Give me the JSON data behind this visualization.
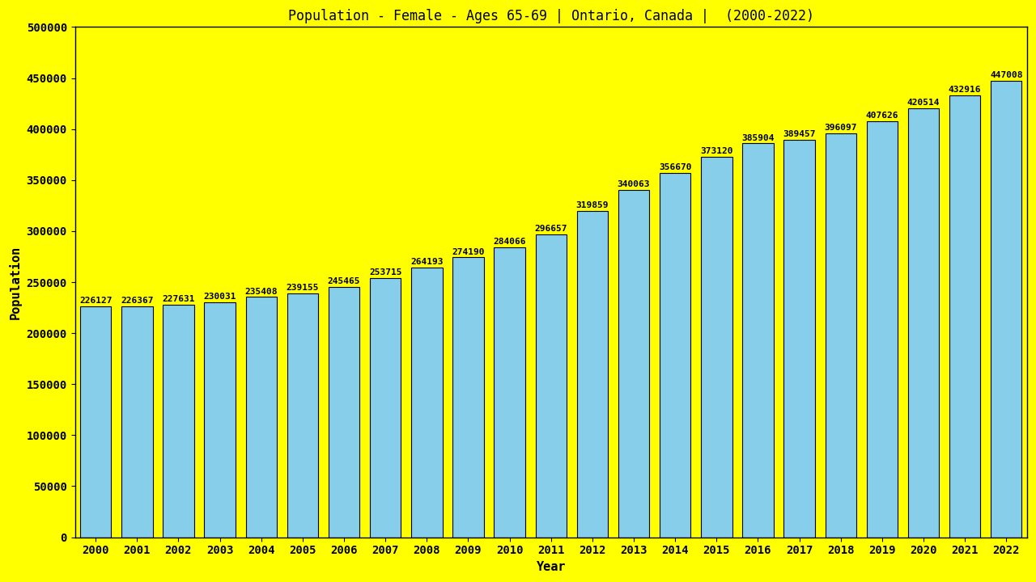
{
  "title": "Population - Female - Ages 65-69 | Ontario, Canada |  (2000-2022)",
  "xlabel": "Year",
  "ylabel": "Population",
  "background_color": "#FFFF00",
  "bar_color": "#87CEEB",
  "bar_edge_color": "#000000",
  "years": [
    2000,
    2001,
    2002,
    2003,
    2004,
    2005,
    2006,
    2007,
    2008,
    2009,
    2010,
    2011,
    2012,
    2013,
    2014,
    2015,
    2016,
    2017,
    2018,
    2019,
    2020,
    2021,
    2022
  ],
  "values": [
    226127,
    226367,
    227631,
    230031,
    235408,
    239155,
    245465,
    253715,
    264193,
    274190,
    284066,
    296657,
    319859,
    340063,
    356670,
    373120,
    385904,
    389457,
    396097,
    407626,
    420514,
    432916,
    447008
  ],
  "ylim": [
    0,
    500000
  ],
  "yticks": [
    0,
    50000,
    100000,
    150000,
    200000,
    250000,
    300000,
    350000,
    400000,
    450000,
    500000
  ],
  "title_fontsize": 12,
  "axis_label_fontsize": 11,
  "tick_fontsize": 10,
  "bar_label_fontsize": 8,
  "title_color": "#000000",
  "axis_label_color": "#000000",
  "tick_label_color": "#000000"
}
